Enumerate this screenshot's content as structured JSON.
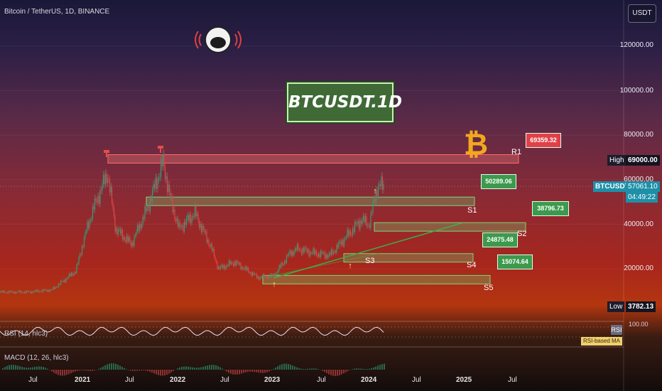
{
  "header": {
    "symbol_line": "Bitcoin / TetherUS, 1D, BINANCE",
    "currency_button": "USDT"
  },
  "title": "BTCUSDT.1D",
  "price_axis": {
    "ticks": [
      "120000.00",
      "100000.00",
      "80000.00",
      "60000.00",
      "40000.00",
      "20000.00"
    ]
  },
  "time_axis": {
    "ticks": [
      "Jul",
      "2021",
      "Jul",
      "2022",
      "Jul",
      "2023",
      "Jul",
      "2024",
      "Jul",
      "2025",
      "Jul"
    ]
  },
  "tags": {
    "high_label": "High",
    "high_value": "69000.00",
    "symbol": "BTCUSDT",
    "last_price": "57061.10",
    "countdown": "04:49:22",
    "low_label": "Low",
    "low_value": "3782.13"
  },
  "levels": [
    {
      "name": "R1",
      "value": "69359.32",
      "color": "#e24a4a"
    },
    {
      "name": "S1",
      "value": "50289.06",
      "color": "#3a9a4a"
    },
    {
      "name": "S2",
      "value": "38796.73",
      "color": "#3a9a4a"
    },
    {
      "name": "S3",
      "value": "",
      "color": "#3a9a4a"
    },
    {
      "name": "S4",
      "value": "24875.48",
      "color": "#3a9a4a"
    },
    {
      "name": "S5",
      "value": "15074.64",
      "color": "#3a9a4a"
    }
  ],
  "rsi": {
    "label": "RSI (14, hlc3)",
    "badge": "RSI",
    "tick": "100.00",
    "ma_label": "RSI-based MA"
  },
  "macd": {
    "label": "MACD (12, 26, hlc3)"
  },
  "colors": {
    "bull": "#2e9e7a",
    "bear": "#d9484a",
    "support": "#3fae4a",
    "resistance": "#e24a4a",
    "bitcoin": "#f2a81d"
  },
  "chart_data": {
    "type": "line",
    "title": "BTCUSDT.1D",
    "ylim": [
      0,
      130000
    ],
    "x": [
      "2020-06",
      "2020-09",
      "2020-12",
      "2021-01",
      "2021-02",
      "2021-04",
      "2021-05",
      "2021-07",
      "2021-09",
      "2021-11",
      "2021-12",
      "2022-01",
      "2022-03",
      "2022-05",
      "2022-06",
      "2022-08",
      "2022-11",
      "2023-01",
      "2023-03",
      "2023-04",
      "2023-06",
      "2023-08",
      "2023-10",
      "2023-12",
      "2024-01",
      "2024-02"
    ],
    "series": [
      {
        "values": [
          9500,
          10500,
          19000,
          33000,
          45000,
          63000,
          38000,
          31000,
          47000,
          68000,
          50000,
          38000,
          45000,
          30000,
          20000,
          23000,
          16000,
          17000,
          27000,
          29000,
          27000,
          26000,
          34000,
          42000,
          40000,
          57061
        ]
      }
    ],
    "levels": {
      "R1": 69359.32,
      "S1": 50289.06,
      "S2": 38796.73,
      "S4": 24875.48,
      "S5": 15074.64,
      "High": 69000.0,
      "Low": 3782.13
    }
  }
}
